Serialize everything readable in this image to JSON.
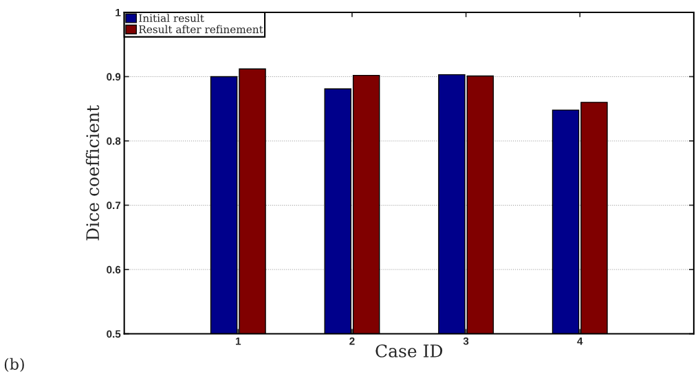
{
  "chart_data": {
    "type": "bar",
    "xlabel": "Case ID",
    "ylabel": "Dice coefficient",
    "categories": [
      "1",
      "2",
      "3",
      "4"
    ],
    "series": [
      {
        "name": "Initial result",
        "color": "#00008b",
        "values": [
          0.9,
          0.881,
          0.903,
          0.848
        ]
      },
      {
        "name": "Result after refinement",
        "color": "#800000",
        "values": [
          0.912,
          0.902,
          0.901,
          0.86
        ]
      }
    ],
    "ylim": [
      0.5,
      1
    ],
    "yticks": [
      0.5,
      0.6,
      0.7,
      0.8,
      0.9,
      1
    ],
    "grid": "y",
    "legend": "top left",
    "annotations": [
      "(b)"
    ]
  }
}
